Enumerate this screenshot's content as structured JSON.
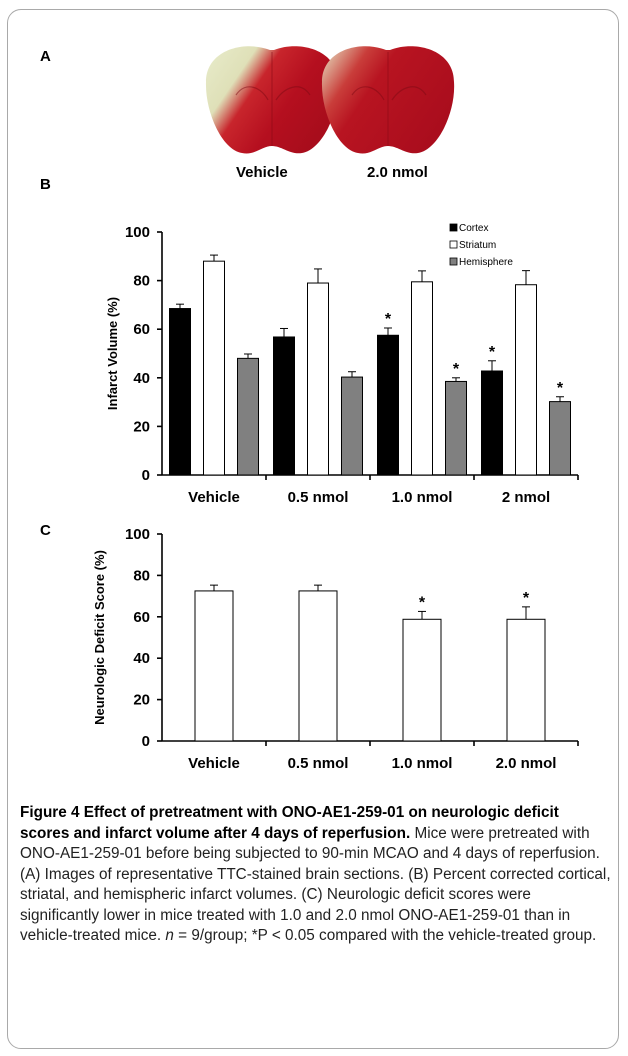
{
  "panel_labels": {
    "a": "A",
    "b": "B",
    "c": "C"
  },
  "brain_images": [
    {
      "label": "Vehicle",
      "icon": "ttc-stained-brain-section-vehicle"
    },
    {
      "label": "2.0 nmol",
      "icon": "ttc-stained-brain-section-2nmol"
    }
  ],
  "colors": {
    "cortex": "#000000",
    "striatum": "#ffffff",
    "hemisphere": "#808080",
    "stain_red": "#b0101c",
    "stain_pale": "#e9ebc4"
  },
  "chart_data": [
    {
      "type": "bar",
      "title": "",
      "ylabel": "Infarct Volume (%)",
      "xlabel": "",
      "ylim": [
        0,
        100
      ],
      "yticks": [
        "0",
        "20",
        "40",
        "60",
        "80",
        "100"
      ],
      "categories": [
        "Vehicle",
        "0.5 nmol",
        "1.0 nmol",
        "2 nmol"
      ],
      "legend_position": "top-right",
      "grid": false,
      "series": [
        {
          "name": "Cortex",
          "values": [
            68.5,
            56.8,
            57.5,
            42.8
          ],
          "errors": [
            1.8,
            3.5,
            3.0,
            4.2
          ],
          "significant": [
            false,
            false,
            true,
            true
          ]
        },
        {
          "name": "Striatum",
          "values": [
            88,
            79,
            79.5,
            78.3
          ],
          "errors": [
            2.5,
            5.8,
            4.5,
            5.8
          ],
          "significant": [
            false,
            false,
            false,
            false
          ]
        },
        {
          "name": "Hemisphere",
          "values": [
            48,
            40.3,
            38.5,
            30.2
          ],
          "errors": [
            1.8,
            2.2,
            1.5,
            2.0
          ],
          "significant": [
            false,
            false,
            true,
            true
          ]
        }
      ],
      "significance_marker": "*"
    },
    {
      "type": "bar",
      "title": "",
      "ylabel": "Neurologic Deficit Score (%)",
      "xlabel": "",
      "ylim": [
        0,
        100
      ],
      "yticks": [
        "0",
        "20",
        "40",
        "60",
        "80",
        "100"
      ],
      "categories": [
        "Vehicle",
        "0.5 nmol",
        "1.0 nmol",
        "2.0 nmol"
      ],
      "grid": false,
      "series": [
        {
          "values": [
            72.5,
            72.5,
            58.8,
            58.8
          ],
          "errors": [
            2.8,
            2.8,
            3.8,
            6.0
          ],
          "significant": [
            false,
            false,
            true,
            true
          ]
        }
      ],
      "significance_marker": "*"
    }
  ],
  "caption": {
    "title": "Figure 4 Effect of pretreatment with ONO-AE1-259-01 on neurologic deficit scores and infarct volume after 4 days of reperfusion",
    "title_end": ".",
    "body_1": " Mice were pretreated with ONO-AE1-259-01 before being subjected to 90-min MCAO and 4 days of reperfusion. (A) Images of representative TTC-stained brain sections. (B) Percent corrected cortical, striatal, and hemispheric infarct volumes. (C) Neurologic deficit scores were significantly lower in mice treated with 1.0 and 2.0 nmol ONO-AE1-259-01 than in vehicle-treated mice. ",
    "n_symbol": "n",
    "body_2": " = 9/group; *P < 0.05 compared with the vehicle-treated group."
  }
}
